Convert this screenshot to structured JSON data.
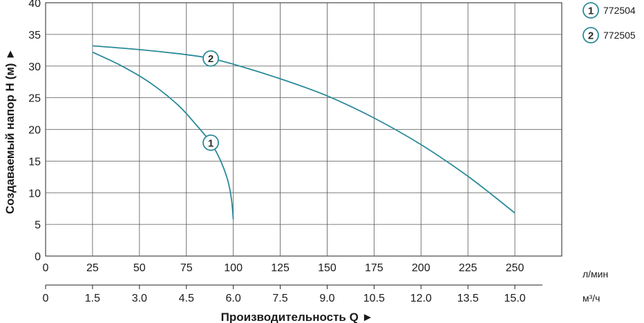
{
  "chart_data": {
    "type": "line",
    "xlabel": "Производительность Q ►",
    "ylabel": "Создаваемый напор H (м) ►",
    "x_unit_primary": "л/мин",
    "x_unit_secondary": "м³/ч",
    "xlim": [
      0,
      275
    ],
    "ylim": [
      0,
      40
    ],
    "x_ticks_primary": [
      "0",
      "25",
      "50",
      "75",
      "100",
      "125",
      "150",
      "175",
      "200",
      "225",
      "250"
    ],
    "x_ticks_secondary": [
      "0",
      "1.5",
      "3.0",
      "4.5",
      "6.0",
      "7.5",
      "9.0",
      "10.5",
      "12.0",
      "13.5",
      "15.0"
    ],
    "y_ticks": [
      "0",
      "5",
      "10",
      "15",
      "20",
      "25",
      "30",
      "35",
      "40"
    ],
    "grid": true,
    "legend_position": "top-right",
    "curve_color": "#2a8a98",
    "series": [
      {
        "id": "1",
        "label": "772504",
        "marker_at": [
          88,
          17.9
        ],
        "x": [
          25,
          40,
          55,
          70,
          80,
          88,
          93,
          97,
          99,
          100
        ],
        "y": [
          32.2,
          30.1,
          27.5,
          24.0,
          20.8,
          17.9,
          15.2,
          12.0,
          9.0,
          5.8
        ]
      },
      {
        "id": "2",
        "label": "772505",
        "marker_at": [
          88,
          31.2
        ],
        "x": [
          25,
          50,
          75,
          88,
          100,
          125,
          150,
          175,
          200,
          225,
          250
        ],
        "y": [
          33.2,
          32.6,
          31.8,
          31.2,
          30.3,
          28.0,
          25.3,
          21.8,
          17.6,
          12.6,
          6.8
        ]
      }
    ]
  }
}
